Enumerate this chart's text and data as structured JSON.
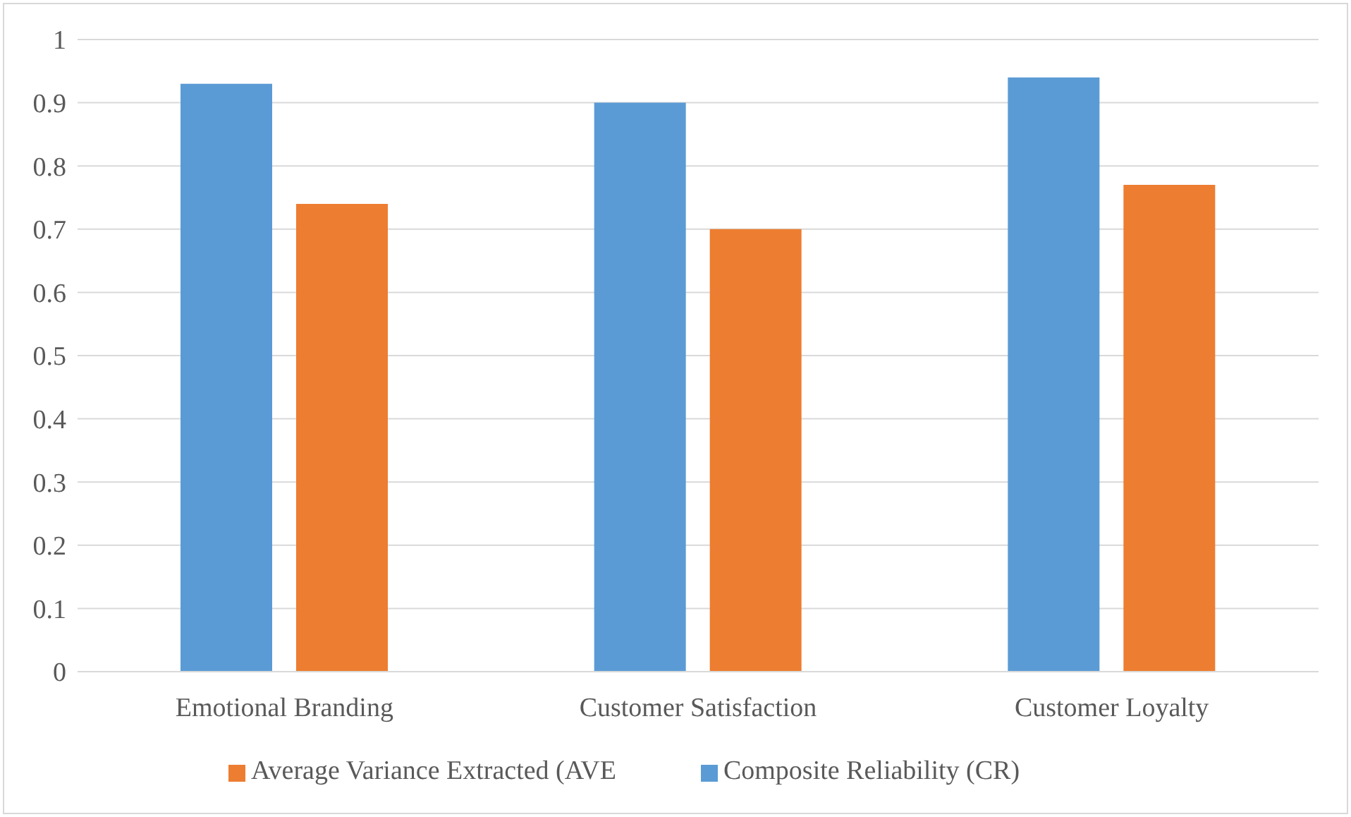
{
  "chart_data": {
    "type": "bar",
    "categories": [
      "Emotional Branding",
      "Customer Satisfaction",
      "Customer Loyalty"
    ],
    "series": [
      {
        "name": "Composite Reliability (CR)",
        "color": "#5b9bd5",
        "values": [
          0.93,
          0.9,
          0.94
        ]
      },
      {
        "name": "Average Variance Extracted (AVE",
        "color": "#ed7d31",
        "values": [
          0.74,
          0.7,
          0.77
        ]
      }
    ],
    "ylim": [
      0,
      1
    ],
    "yticks": [
      0,
      0.1,
      0.2,
      0.3,
      0.4,
      0.5,
      0.6,
      0.7,
      0.8,
      0.9,
      1
    ],
    "grid": "y",
    "legend": "bottom"
  }
}
